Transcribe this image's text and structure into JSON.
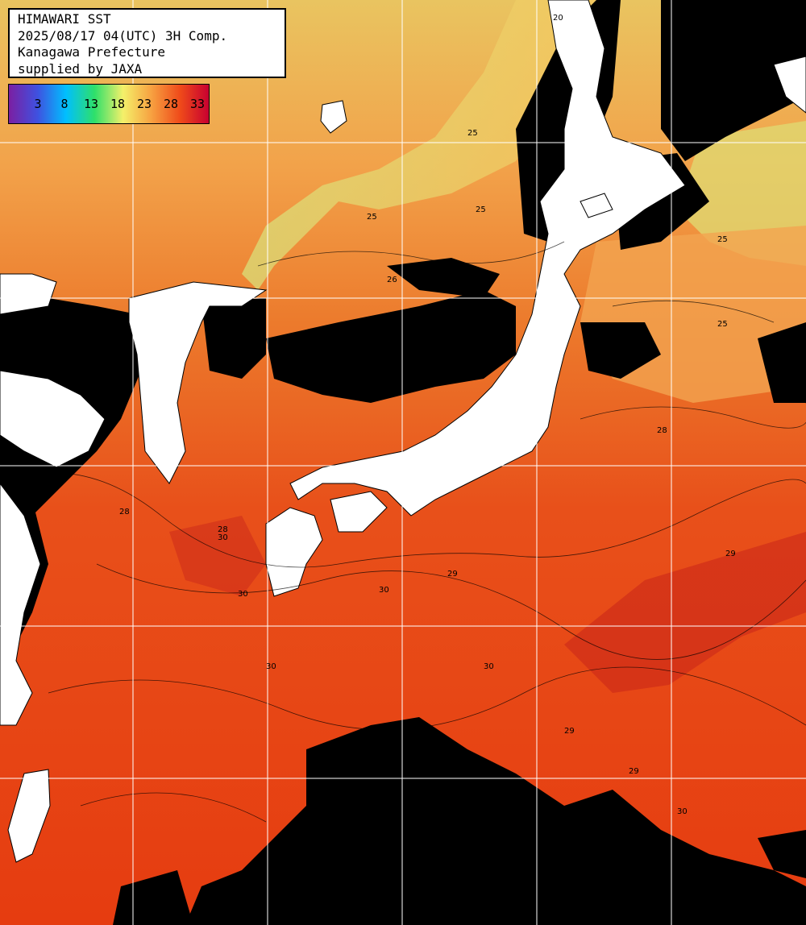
{
  "title": {
    "line1": "HIMAWARI SST",
    "line2": "2025/08/17 04(UTC) 3H Comp.",
    "line3": "Kanagawa Prefecture",
    "line4": "supplied by JAXA"
  },
  "scale": {
    "ticks": [
      "3",
      "8",
      "13",
      "18",
      "23",
      "28",
      "33"
    ],
    "colors": [
      "#7b1fa2",
      "#3f51e0",
      "#00bfff",
      "#2ee06a",
      "#f4f06a",
      "#f7a040",
      "#ef4a1a",
      "#c80030"
    ]
  },
  "contour_labels": [
    "20",
    "25",
    "25",
    "26",
    "25",
    "25",
    "28",
    "28",
    "28",
    "29",
    "30",
    "30",
    "30",
    "29",
    "29",
    "29",
    "29",
    "30",
    "30",
    "30",
    "25"
  ],
  "colors": {
    "land": "#ffffff",
    "cloud": "#000000",
    "grid": "#ffffff",
    "sea_warm": "#e8400f"
  }
}
